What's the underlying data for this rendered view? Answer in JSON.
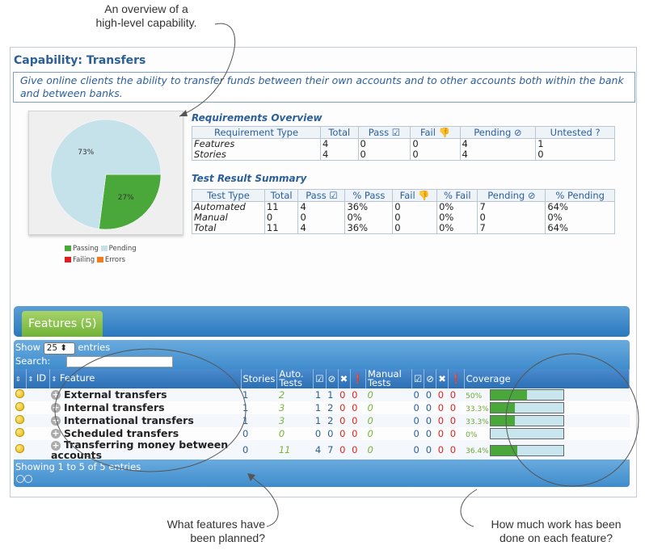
{
  "annotations": {
    "top": [
      "An overview of a",
      "high-level capability."
    ],
    "left": [
      "What features have",
      "been planned?"
    ],
    "right": [
      "How much work has been",
      "done on each feature?"
    ]
  },
  "capability": {
    "title": "Capability: Transfers",
    "narrative": "Give online clients the ability to transfer funds between their own accounts and to other accounts both within the bank and between banks."
  },
  "chart_data": {
    "type": "pie",
    "slices": [
      {
        "label": "Passing",
        "value": 27,
        "display": "27%",
        "color": "#4aa83a"
      },
      {
        "label": "Pending",
        "value": 73,
        "display": "73%",
        "color": "#c5e1ea"
      }
    ],
    "legend": [
      {
        "label": "Passing",
        "color": "#4aa83a"
      },
      {
        "label": "Pending",
        "color": "#c5e1ea"
      },
      {
        "label": "Failing",
        "color": "#e21d1d"
      },
      {
        "label": "Errors",
        "color": "#f07c1d"
      }
    ],
    "legend_position": "bottom"
  },
  "requirements": {
    "title": "Requirements Overview",
    "headers": [
      "Requirement Type",
      "Total",
      "Pass ☑",
      "Fail 👎",
      "Pending ⊘",
      "Untested ?"
    ],
    "rows": [
      [
        "Features",
        "4",
        "0",
        "0",
        "4",
        "1"
      ],
      [
        "Stories",
        "4",
        "0",
        "0",
        "4",
        "0"
      ]
    ]
  },
  "results": {
    "title": "Test Result Summary",
    "headers": [
      "Test Type",
      "Total",
      "Pass ☑",
      "% Pass",
      "Fail 👎",
      "% Fail",
      "Pending ⊘",
      "% Pending"
    ],
    "rows": [
      [
        "Automated",
        "11",
        "4",
        "36%",
        "0",
        "0%",
        "7",
        "64%"
      ],
      [
        "Manual",
        "0",
        "0",
        "0%",
        "0",
        "0%",
        "0",
        "0%"
      ],
      [
        "Total",
        "11",
        "4",
        "36%",
        "0",
        "0%",
        "7",
        "64%"
      ]
    ]
  },
  "features_tab": {
    "label": "Features (5)"
  },
  "controls": {
    "show": "Show",
    "length": "25",
    "entries": "entries",
    "search_label": "Search:",
    "info": "Showing 1 to 5 of 5 entries"
  },
  "grid": {
    "headers": {
      "id": "ID",
      "feature": "Feature",
      "stories": "Stories",
      "auto": "Auto. Tests",
      "manual": "Manual Tests",
      "coverage": "Coverage"
    },
    "rows": [
      {
        "name": "External transfers",
        "stories": "1",
        "auto": "2",
        "a_pass": "1",
        "a_pend": "1",
        "a_fail": "0",
        "a_err": "0",
        "manual": "0",
        "m_pass": "0",
        "m_pend": "0",
        "m_fail": "0",
        "m_err": "0",
        "cov": "50%",
        "cov_value": 0.5
      },
      {
        "name": "Internal transfers",
        "stories": "1",
        "auto": "3",
        "a_pass": "1",
        "a_pend": "2",
        "a_fail": "0",
        "a_err": "0",
        "manual": "0",
        "m_pass": "0",
        "m_pend": "0",
        "m_fail": "0",
        "m_err": "0",
        "cov": "33.3%",
        "cov_value": 0.333
      },
      {
        "name": "International transfers",
        "stories": "1",
        "auto": "3",
        "a_pass": "1",
        "a_pend": "2",
        "a_fail": "0",
        "a_err": "0",
        "manual": "0",
        "m_pass": "0",
        "m_pend": "0",
        "m_fail": "0",
        "m_err": "0",
        "cov": "33.3%",
        "cov_value": 0.333
      },
      {
        "name": "Scheduled transfers",
        "stories": "0",
        "auto": "0",
        "a_pass": "0",
        "a_pend": "0",
        "a_fail": "0",
        "a_err": "0",
        "manual": "0",
        "m_pass": "0",
        "m_pend": "0",
        "m_fail": "0",
        "m_err": "0",
        "cov": "0%",
        "cov_value": 0
      },
      {
        "name": "Transferring money between accounts",
        "stories": "0",
        "auto": "11",
        "a_pass": "4",
        "a_pend": "7",
        "a_fail": "0",
        "a_err": "0",
        "manual": "0",
        "m_pass": "0",
        "m_pend": "0",
        "m_fail": "0",
        "m_err": "0",
        "cov": "36.4%",
        "cov_value": 0.364
      }
    ]
  }
}
